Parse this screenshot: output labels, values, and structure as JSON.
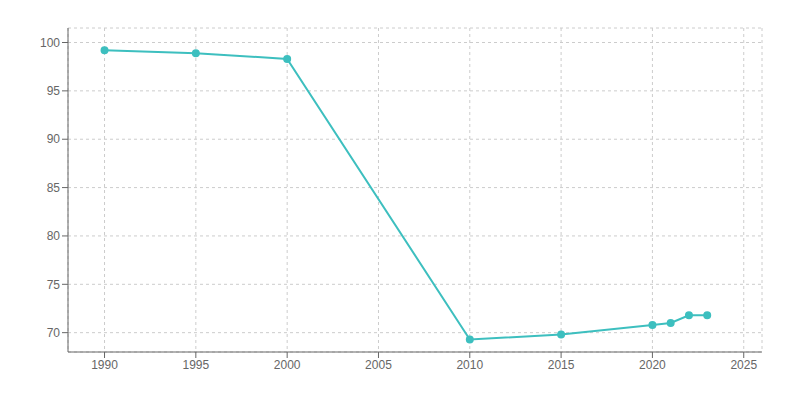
{
  "chart_data": {
    "type": "line",
    "x": [
      1990,
      1995,
      2000,
      2010,
      2015,
      2020,
      2021,
      2022,
      2023
    ],
    "values": [
      99.2,
      98.9,
      98.3,
      69.3,
      69.8,
      70.8,
      71.0,
      71.8,
      71.8
    ],
    "color": "#3dbfbf",
    "marker": "circle",
    "xlim": [
      1988,
      2026
    ],
    "ylim": [
      68,
      101.5
    ],
    "xticks": [
      1990,
      1995,
      2000,
      2005,
      2010,
      2015,
      2020,
      2025
    ],
    "yticks": [
      70,
      75,
      80,
      85,
      90,
      95,
      100
    ],
    "grid": true
  }
}
